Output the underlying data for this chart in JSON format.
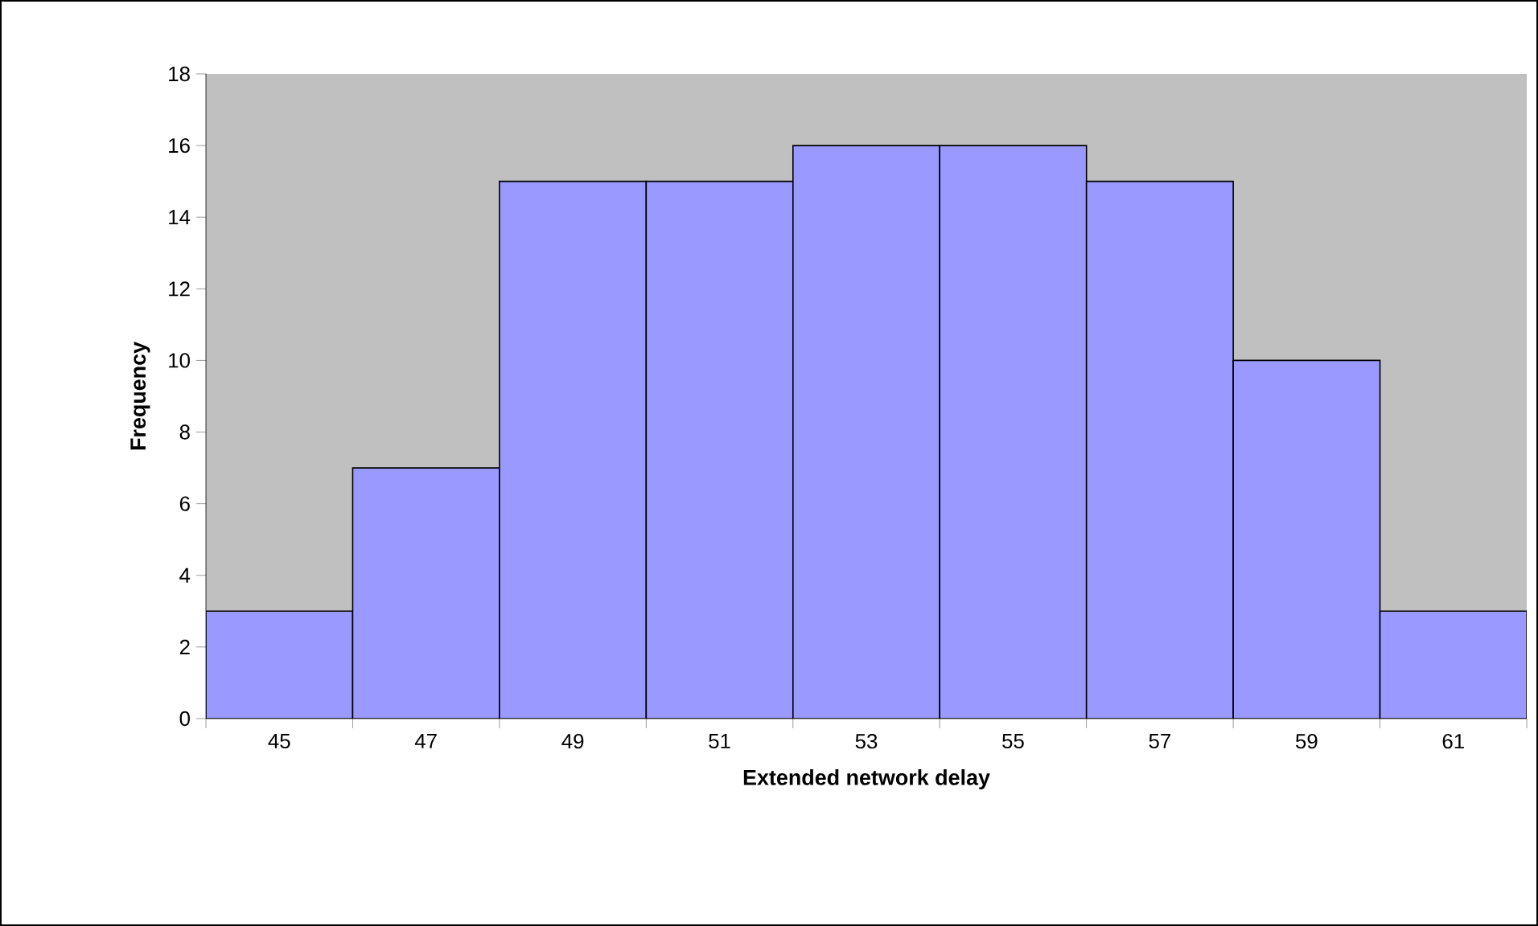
{
  "chart_data": {
    "type": "bar",
    "xlabel": "Extended network delay",
    "ylabel": "Frequency",
    "categories": [
      "45",
      "47",
      "49",
      "51",
      "53",
      "55",
      "57",
      "59",
      "61"
    ],
    "values": [
      3,
      7,
      15,
      15,
      16,
      16,
      15,
      10,
      3
    ],
    "color": "#9999ff",
    "ylim": [
      0,
      18
    ],
    "yticks": [
      0,
      2,
      4,
      6,
      8,
      10,
      12,
      14,
      16,
      18
    ]
  }
}
